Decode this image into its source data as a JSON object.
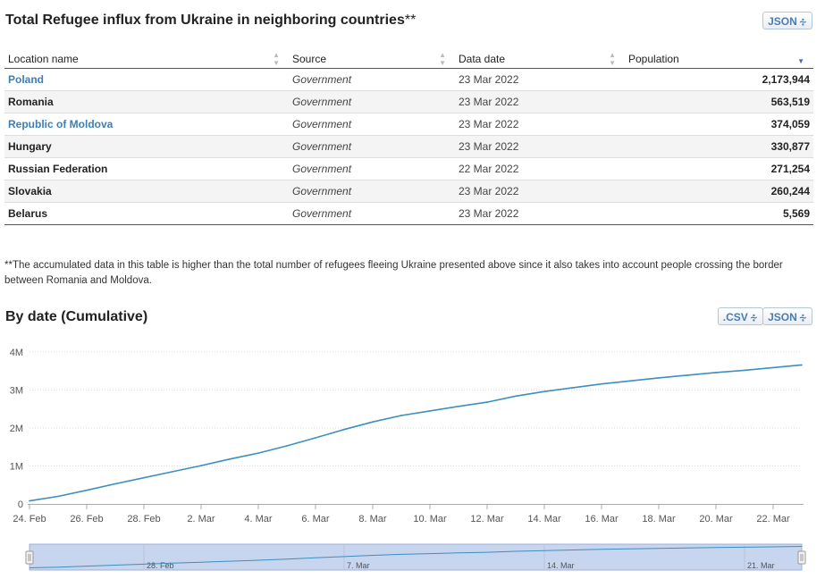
{
  "table_section": {
    "title": "Total Refugee influx from Ukraine in neighboring countries",
    "title_suffix": "**",
    "json_button": "JSON",
    "columns": [
      "Location name",
      "Source",
      "Data date",
      "Population"
    ],
    "rows": [
      {
        "location": "Poland",
        "link": true,
        "source": "Government",
        "date": "23 Mar 2022",
        "population": "2,173,944"
      },
      {
        "location": "Romania",
        "link": false,
        "source": "Government",
        "date": "23 Mar 2022",
        "population": "563,519"
      },
      {
        "location": "Republic of Moldova",
        "link": true,
        "source": "Government",
        "date": "23 Mar 2022",
        "population": "374,059"
      },
      {
        "location": "Hungary",
        "link": false,
        "source": "Government",
        "date": "23 Mar 2022",
        "population": "330,877"
      },
      {
        "location": "Russian Federation",
        "link": false,
        "source": "Government",
        "date": "22 Mar 2022",
        "population": "271,254"
      },
      {
        "location": "Slovakia",
        "link": false,
        "source": "Government",
        "date": "23 Mar 2022",
        "population": "260,244"
      },
      {
        "location": "Belarus",
        "link": false,
        "source": "Government",
        "date": "23 Mar 2022",
        "population": "5,569"
      }
    ],
    "footnote": "**The accumulated data in this table is higher than the total number of refugees fleeing Ukraine presented above since it also takes into account people crossing the border between Romania and Moldova."
  },
  "chart_section": {
    "title": "By date (Cumulative)",
    "csv_button": ".CSV",
    "json_button": "JSON"
  },
  "colors": {
    "line": "#3d8fc0",
    "link": "#3c7fb6",
    "navigator_fill": "#c7d5ee",
    "navigator_border": "#9fb2d8"
  },
  "chart_data": {
    "type": "line",
    "title": "By date (Cumulative)",
    "xlabel": "",
    "ylabel": "",
    "x": [
      "24 Feb",
      "25 Feb",
      "26 Feb",
      "27 Feb",
      "28 Feb",
      "1 Mar",
      "2 Mar",
      "3 Mar",
      "4 Mar",
      "5 Mar",
      "6 Mar",
      "7 Mar",
      "8 Mar",
      "9 Mar",
      "10 Mar",
      "11 Mar",
      "12 Mar",
      "13 Mar",
      "14 Mar",
      "15 Mar",
      "16 Mar",
      "17 Mar",
      "18 Mar",
      "19 Mar",
      "20 Mar",
      "21 Mar",
      "22 Mar",
      "23 Mar"
    ],
    "series": [
      {
        "values": [
          80000,
          200000,
          360000,
          530000,
          690000,
          850000,
          1010000,
          1180000,
          1340000,
          1530000,
          1740000,
          1960000,
          2160000,
          2330000,
          2450000,
          2570000,
          2680000,
          2840000,
          2960000,
          3060000,
          3160000,
          3240000,
          3320000,
          3390000,
          3460000,
          3520000,
          3590000,
          3660000
        ]
      }
    ],
    "ylim": [
      0,
      4000000
    ],
    "y_ticks": [
      "0",
      "1M",
      "2M",
      "3M",
      "4M"
    ],
    "x_ticks": [
      "24. Feb",
      "26. Feb",
      "28. Feb",
      "2. Mar",
      "4. Mar",
      "6. Mar",
      "8. Mar",
      "10. Mar",
      "12. Mar",
      "14. Mar",
      "16. Mar",
      "18. Mar",
      "20. Mar",
      "22. Mar"
    ],
    "navigator_ticks": [
      "28. Feb",
      "7. Mar",
      "14. Mar",
      "21. Mar"
    ],
    "grid": true,
    "legend": "none"
  }
}
